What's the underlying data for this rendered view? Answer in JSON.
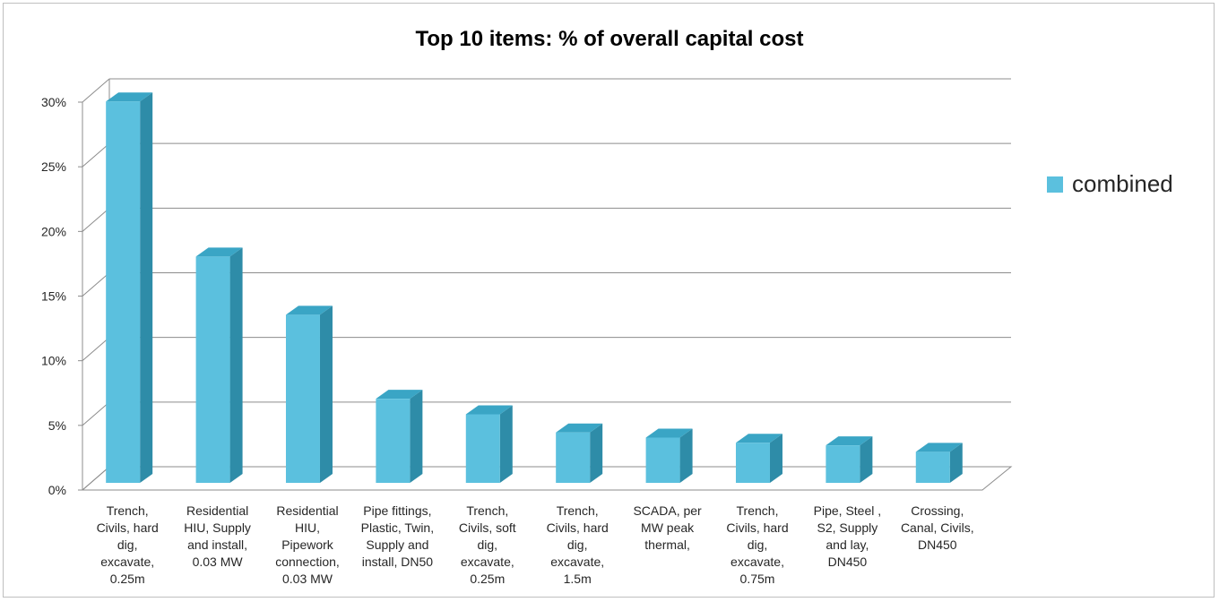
{
  "chart_data": {
    "type": "bar",
    "title": "Top 10 items: % of overall capital cost",
    "xlabel": "",
    "ylabel": "",
    "ylim": [
      0,
      30
    ],
    "yticks": [
      "0%",
      "5%",
      "10%",
      "15%",
      "20%",
      "25%",
      "30%"
    ],
    "ytick_values": [
      0,
      5,
      10,
      15,
      20,
      25,
      30
    ],
    "grid": true,
    "legend_position": "right",
    "bar_color": "#5bc0de",
    "bar_side_color": "#2e8ca8",
    "bar_top_color": "#3aa5c5",
    "categories": [
      "Trench,\nCivils, hard\ndig,\nexcavate,\n0.25m",
      "Residential\nHIU, Supply\nand install,\n0.03 MW",
      "Residential\nHIU,\nPipework\nconnection,\n0.03 MW",
      "Pipe fittings,\nPlastic, Twin,\nSupply and\ninstall, DN50",
      "Trench,\nCivils, soft\ndig,\nexcavate,\n0.25m",
      "Trench,\nCivils, hard\ndig,\nexcavate,\n1.5m",
      "SCADA, per\nMW peak\nthermal,",
      "Trench,\nCivils, hard\ndig,\nexcavate,\n0.75m",
      "Pipe, Steel ,\nS2, Supply\nand lay,\nDN450",
      "Crossing,\nCanal, Civils,\nDN450"
    ],
    "series": [
      {
        "name": "combined",
        "values": [
          29.5,
          17.5,
          13.0,
          6.5,
          5.3,
          3.9,
          3.5,
          3.1,
          2.9,
          2.4
        ]
      }
    ]
  }
}
